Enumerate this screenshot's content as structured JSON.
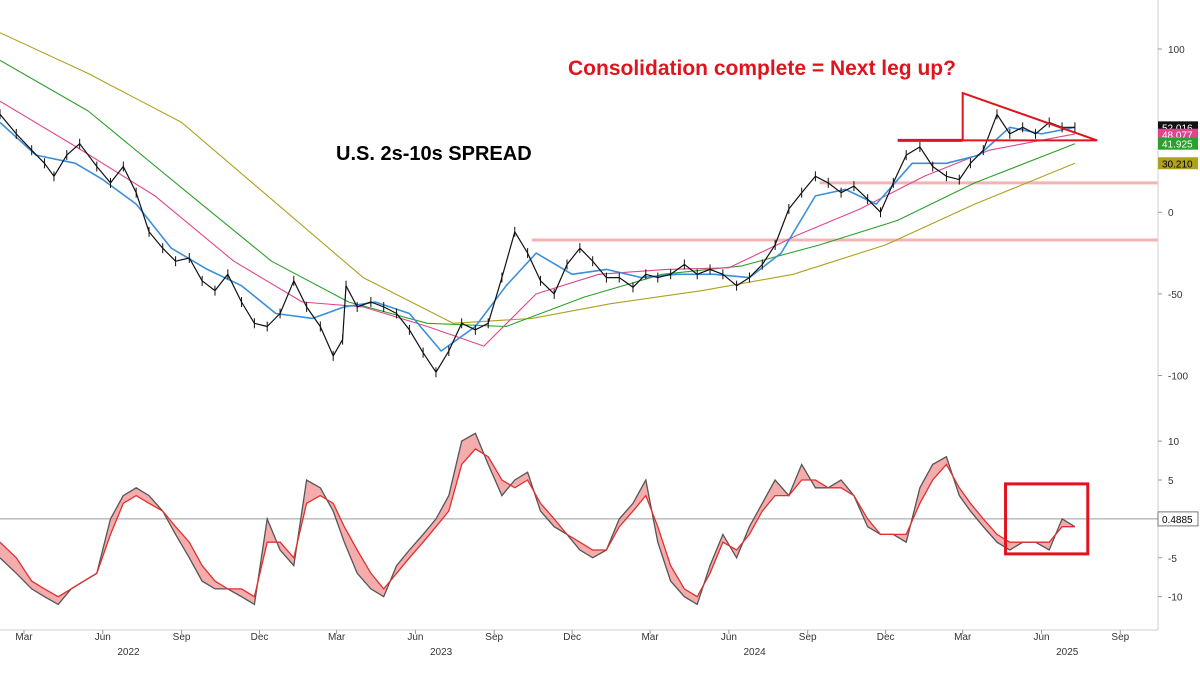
{
  "colors": {
    "price": "#111111",
    "ma_fast": "#3a8fdc",
    "ma_pink": "#e0468c",
    "ma_green": "#2ca02c",
    "ma_olive": "#b0a020",
    "annotation_red": "#e0141e",
    "level_band": "#f4b4b4",
    "osc_fill": "#f4a3a3",
    "osc_dark": "#555555",
    "osc_red": "#e03030"
  },
  "chart_data": [
    {
      "type": "line",
      "title": "U.S. 2s-10s SPREAD",
      "annotation": "Consolidation complete = Next leg up?",
      "x_range": [
        "2022-02-01",
        "2025-10-15"
      ],
      "ylim": [
        -115,
        130
      ],
      "y_ticks": [
        100,
        50,
        0,
        -50,
        -100
      ],
      "y_tick_labels": [
        "100",
        "50",
        "0",
        "-50",
        "-100"
      ],
      "x_ticks": [
        {
          "date": "2022-03-01",
          "label": "Mar"
        },
        {
          "date": "2022-06-01",
          "label": "Jun"
        },
        {
          "date": "2022-09-01",
          "label": "Sep"
        },
        {
          "date": "2022-12-01",
          "label": "Dec"
        },
        {
          "date": "2023-03-01",
          "label": "Mar"
        },
        {
          "date": "2023-06-01",
          "label": "Jun"
        },
        {
          "date": "2023-09-01",
          "label": "Sep"
        },
        {
          "date": "2023-12-01",
          "label": "Dec"
        },
        {
          "date": "2024-03-01",
          "label": "Mar"
        },
        {
          "date": "2024-06-01",
          "label": "Jun"
        },
        {
          "date": "2024-09-01",
          "label": "Sep"
        },
        {
          "date": "2024-12-01",
          "label": "Dec"
        },
        {
          "date": "2025-03-01",
          "label": "Mar"
        },
        {
          "date": "2025-06-01",
          "label": "Jun"
        },
        {
          "date": "2025-09-01",
          "label": "Sep"
        }
      ],
      "year_labels": [
        {
          "date": "2022-07-01",
          "label": "2022"
        },
        {
          "date": "2023-07-01",
          "label": "2023"
        },
        {
          "date": "2024-07-01",
          "label": "2024"
        },
        {
          "date": "2025-07-01",
          "label": "2025"
        }
      ],
      "horizontal_levels": [
        {
          "y": 18,
          "start": "2024-09-15"
        },
        {
          "y": -17,
          "start": "2023-10-15"
        }
      ],
      "series": [
        {
          "name": "2s-10s spread",
          "style": "price",
          "x": [
            "2022-02-01",
            "2022-02-20",
            "2022-03-10",
            "2022-03-25",
            "2022-04-05",
            "2022-04-20",
            "2022-05-05",
            "2022-05-25",
            "2022-06-10",
            "2022-06-25",
            "2022-07-10",
            "2022-07-25",
            "2022-08-10",
            "2022-08-25",
            "2022-09-10",
            "2022-09-25",
            "2022-10-10",
            "2022-10-25",
            "2022-11-10",
            "2022-11-25",
            "2022-12-10",
            "2022-12-25",
            "2023-01-10",
            "2023-01-25",
            "2023-02-10",
            "2023-02-25",
            "2023-03-08",
            "2023-03-12",
            "2023-03-25",
            "2023-04-10",
            "2023-04-25",
            "2023-05-10",
            "2023-05-25",
            "2023-06-10",
            "2023-06-25",
            "2023-07-10",
            "2023-07-25",
            "2023-08-10",
            "2023-08-25",
            "2023-09-10",
            "2023-09-25",
            "2023-10-10",
            "2023-10-25",
            "2023-11-10",
            "2023-11-25",
            "2023-12-10",
            "2023-12-25",
            "2024-01-10",
            "2024-01-25",
            "2024-02-10",
            "2024-02-25",
            "2024-03-10",
            "2024-03-25",
            "2024-04-10",
            "2024-04-25",
            "2024-05-10",
            "2024-05-25",
            "2024-06-10",
            "2024-06-25",
            "2024-07-10",
            "2024-07-25",
            "2024-08-10",
            "2024-08-25",
            "2024-09-10",
            "2024-09-25",
            "2024-10-10",
            "2024-10-25",
            "2024-11-10",
            "2024-11-25",
            "2024-12-10",
            "2024-12-25",
            "2025-01-10",
            "2025-01-25",
            "2025-02-10",
            "2025-02-25",
            "2025-03-10",
            "2025-03-25",
            "2025-04-10",
            "2025-04-25",
            "2025-05-10",
            "2025-05-25",
            "2025-06-10",
            "2025-06-25",
            "2025-07-10"
          ],
          "y": [
            60,
            48,
            38,
            30,
            22,
            35,
            42,
            28,
            18,
            28,
            12,
            -12,
            -22,
            -30,
            -28,
            -42,
            -48,
            -38,
            -55,
            -68,
            -70,
            -62,
            -42,
            -58,
            -70,
            -88,
            -78,
            -45,
            -58,
            -55,
            -58,
            -62,
            -72,
            -86,
            -98,
            -85,
            -68,
            -72,
            -68,
            -40,
            -12,
            -25,
            -42,
            -50,
            -32,
            -22,
            -30,
            -40,
            -40,
            -46,
            -38,
            -40,
            -38,
            -32,
            -38,
            -35,
            -38,
            -45,
            -40,
            -32,
            -20,
            2,
            12,
            22,
            18,
            12,
            16,
            8,
            0,
            18,
            35,
            40,
            28,
            22,
            20,
            30,
            38,
            60,
            48,
            52,
            48,
            55,
            52,
            52
          ]
        },
        {
          "name": "fast average",
          "style": "ma_fast",
          "x": [
            "2022-02-01",
            "2022-03-15",
            "2022-04-30",
            "2022-06-01",
            "2022-07-10",
            "2022-08-20",
            "2022-10-01",
            "2022-11-10",
            "2022-12-20",
            "2023-02-01",
            "2023-03-10",
            "2023-04-15",
            "2023-05-25",
            "2023-07-01",
            "2023-08-10",
            "2023-09-15",
            "2023-10-20",
            "2023-12-01",
            "2024-01-10",
            "2024-02-20",
            "2024-04-01",
            "2024-05-15",
            "2024-06-25",
            "2024-08-01",
            "2024-09-10",
            "2024-10-15",
            "2024-11-20",
            "2025-01-01",
            "2025-02-10",
            "2025-03-20",
            "2025-04-25",
            "2025-06-01",
            "2025-07-10"
          ],
          "y": [
            55,
            35,
            30,
            20,
            5,
            -22,
            -35,
            -45,
            -62,
            -65,
            -58,
            -55,
            -62,
            -85,
            -70,
            -45,
            -25,
            -38,
            -35,
            -40,
            -38,
            -38,
            -40,
            -25,
            10,
            14,
            5,
            30,
            30,
            35,
            52,
            48,
            52
          ]
        },
        {
          "name": "pink average",
          "style": "ma_pink",
          "x": [
            "2022-02-01",
            "2022-05-01",
            "2022-08-01",
            "2022-11-01",
            "2023-01-20",
            "2023-04-01",
            "2023-06-15",
            "2023-08-20",
            "2023-10-20",
            "2024-01-01",
            "2024-03-20",
            "2024-06-01",
            "2024-08-20",
            "2024-11-01",
            "2025-01-15",
            "2025-04-01",
            "2025-07-10"
          ],
          "y": [
            68,
            40,
            10,
            -30,
            -55,
            -58,
            -70,
            -82,
            -50,
            -38,
            -35,
            -34,
            -14,
            2,
            22,
            38,
            48
          ]
        },
        {
          "name": "green average",
          "style": "ma_green",
          "x": [
            "2022-02-01",
            "2022-05-15",
            "2022-09-01",
            "2022-12-15",
            "2023-03-15",
            "2023-06-15",
            "2023-09-15",
            "2023-12-15",
            "2024-03-15",
            "2024-06-15",
            "2024-09-15",
            "2024-12-15",
            "2025-03-15",
            "2025-07-10"
          ],
          "y": [
            93,
            62,
            15,
            -30,
            -55,
            -68,
            -70,
            -52,
            -38,
            -33,
            -20,
            -5,
            18,
            42
          ]
        },
        {
          "name": "olive average",
          "style": "ma_olive",
          "x": [
            "2022-02-01",
            "2022-05-15",
            "2022-09-01",
            "2022-12-15",
            "2023-04-01",
            "2023-07-15",
            "2023-10-15",
            "2024-01-15",
            "2024-05-01",
            "2024-08-15",
            "2024-12-01",
            "2025-03-15",
            "2025-07-10"
          ],
          "y": [
            110,
            85,
            55,
            8,
            -40,
            -68,
            -65,
            -56,
            -48,
            -38,
            -20,
            5,
            30
          ]
        }
      ],
      "annotation_shapes": {
        "triangle": [
          {
            "x": "2025-03-01",
            "y": 73
          },
          {
            "x": "2025-08-05",
            "y": 44
          },
          {
            "x": "2025-03-01",
            "y": 44
          }
        ],
        "breakout_line": {
          "start": "2024-12-15",
          "end": "2025-03-01",
          "y": 44
        }
      },
      "last_value_badges": [
        {
          "value": "52.016",
          "y": 52,
          "color": "#111111",
          "text": "light"
        },
        {
          "value": "48.077",
          "y": 47.5,
          "color": "#e0468c",
          "text": "light"
        },
        {
          "value": "41.925",
          "y": 42,
          "color": "#2ca02c",
          "text": "light"
        },
        {
          "value": "30.210",
          "y": 30,
          "color": "#b0a020",
          "text": "dark"
        }
      ]
    },
    {
      "type": "area",
      "title": "",
      "x_range": [
        "2022-02-01",
        "2025-10-15"
      ],
      "ylim": [
        -13,
        14
      ],
      "y_ticks": [
        10,
        5,
        0,
        -5,
        -10
      ],
      "y_tick_labels": [
        "10",
        "5",
        "",
        "-5",
        "-10"
      ],
      "zero_line": true,
      "series": [
        {
          "name": "momentum",
          "style": "osc_dark",
          "x": [
            "2022-02-01",
            "2022-02-20",
            "2022-03-10",
            "2022-03-25",
            "2022-04-10",
            "2022-04-25",
            "2022-05-10",
            "2022-05-25",
            "2022-06-10",
            "2022-06-25",
            "2022-07-10",
            "2022-07-25",
            "2022-08-10",
            "2022-08-25",
            "2022-09-10",
            "2022-09-25",
            "2022-10-10",
            "2022-10-25",
            "2022-11-10",
            "2022-11-25",
            "2022-12-10",
            "2022-12-25",
            "2023-01-10",
            "2023-01-25",
            "2023-02-10",
            "2023-02-25",
            "2023-03-10",
            "2023-03-25",
            "2023-04-10",
            "2023-04-25",
            "2023-05-10",
            "2023-05-25",
            "2023-06-10",
            "2023-06-25",
            "2023-07-10",
            "2023-07-25",
            "2023-08-10",
            "2023-08-25",
            "2023-09-10",
            "2023-09-25",
            "2023-10-10",
            "2023-10-25",
            "2023-11-10",
            "2023-11-25",
            "2023-12-10",
            "2023-12-25",
            "2024-01-10",
            "2024-01-25",
            "2024-02-10",
            "2024-02-25",
            "2024-03-10",
            "2024-03-25",
            "2024-04-10",
            "2024-04-25",
            "2024-05-10",
            "2024-05-25",
            "2024-06-10",
            "2024-06-25",
            "2024-07-10",
            "2024-07-25",
            "2024-08-10",
            "2024-08-25",
            "2024-09-10",
            "2024-09-25",
            "2024-10-10",
            "2024-10-25",
            "2024-11-10",
            "2024-11-25",
            "2024-12-10",
            "2024-12-25",
            "2025-01-10",
            "2025-01-25",
            "2025-02-10",
            "2025-02-25",
            "2025-03-10",
            "2025-03-25",
            "2025-04-10",
            "2025-04-25",
            "2025-05-10",
            "2025-05-25",
            "2025-06-10",
            "2025-06-25",
            "2025-07-10"
          ],
          "y": [
            -5,
            -7,
            -9,
            -10,
            -11,
            -9,
            -8,
            -7,
            0,
            3,
            4,
            3,
            1,
            -2,
            -5,
            -8,
            -9,
            -9,
            -10,
            -11,
            0,
            -4,
            -6,
            5,
            4,
            1,
            -3,
            -7,
            -9,
            -10,
            -6,
            -4,
            -2,
            0,
            3,
            10,
            11,
            7,
            3,
            5,
            6,
            1,
            -1,
            -2,
            -4,
            -5,
            -4,
            0,
            2,
            5,
            -3,
            -8,
            -10,
            -11,
            -6,
            -2,
            -5,
            -1,
            2,
            5,
            3,
            7,
            4,
            4,
            5,
            3,
            -1,
            -2,
            -2,
            -3,
            4,
            7,
            8,
            3,
            1,
            -1,
            -3,
            -4,
            -3,
            -3,
            -4,
            0,
            -1
          ]
        },
        {
          "name": "signal",
          "style": "osc_red",
          "x": [
            "2022-02-01",
            "2022-02-20",
            "2022-03-10",
            "2022-03-25",
            "2022-04-10",
            "2022-04-25",
            "2022-05-10",
            "2022-05-25",
            "2022-06-10",
            "2022-06-25",
            "2022-07-10",
            "2022-07-25",
            "2022-08-10",
            "2022-08-25",
            "2022-09-10",
            "2022-09-25",
            "2022-10-10",
            "2022-10-25",
            "2022-11-10",
            "2022-11-25",
            "2022-12-10",
            "2022-12-25",
            "2023-01-10",
            "2023-01-25",
            "2023-02-10",
            "2023-02-25",
            "2023-03-10",
            "2023-03-25",
            "2023-04-10",
            "2023-04-25",
            "2023-05-10",
            "2023-05-25",
            "2023-06-10",
            "2023-06-25",
            "2023-07-10",
            "2023-07-25",
            "2023-08-10",
            "2023-08-25",
            "2023-09-10",
            "2023-09-25",
            "2023-10-10",
            "2023-10-25",
            "2023-11-10",
            "2023-11-25",
            "2023-12-10",
            "2023-12-25",
            "2024-01-10",
            "2024-01-25",
            "2024-02-10",
            "2024-02-25",
            "2024-03-10",
            "2024-03-25",
            "2024-04-10",
            "2024-04-25",
            "2024-05-10",
            "2024-05-25",
            "2024-06-10",
            "2024-06-25",
            "2024-07-10",
            "2024-07-25",
            "2024-08-10",
            "2024-08-25",
            "2024-09-10",
            "2024-09-25",
            "2024-10-10",
            "2024-10-25",
            "2024-11-10",
            "2024-11-25",
            "2024-12-10",
            "2024-12-25",
            "2025-01-10",
            "2025-01-25",
            "2025-02-10",
            "2025-02-25",
            "2025-03-10",
            "2025-03-25",
            "2025-04-10",
            "2025-04-25",
            "2025-05-10",
            "2025-05-25",
            "2025-06-10",
            "2025-06-25",
            "2025-07-10"
          ],
          "y": [
            -3,
            -5,
            -8,
            -9,
            -10,
            -9,
            -8,
            -7,
            -2,
            2,
            3,
            2,
            1,
            -1,
            -3,
            -6,
            -8,
            -9,
            -9,
            -10,
            -3,
            -3,
            -5,
            2,
            3,
            2,
            -1,
            -4,
            -7,
            -9,
            -7,
            -5,
            -3,
            -1,
            1,
            7,
            9,
            8,
            5,
            4,
            5,
            2,
            0,
            -2,
            -3,
            -4,
            -4,
            -1,
            1,
            3,
            -1,
            -6,
            -9,
            -10,
            -7,
            -3,
            -4,
            -2,
            1,
            3,
            3,
            5,
            5,
            4,
            4,
            3,
            0,
            -2,
            -2,
            -2,
            2,
            5,
            7,
            4,
            2,
            0,
            -2,
            -3,
            -3,
            -3,
            -3,
            -1,
            -1
          ]
        }
      ],
      "last_value_badges": [
        {
          "value": "0.4885",
          "y": 0,
          "color": "#ffffff",
          "text": "dark"
        }
      ],
      "highlight_box": {
        "start": "2025-04-20",
        "end": "2025-07-25",
        "y_top": 4.5,
        "y_bottom": -4.5
      }
    }
  ]
}
